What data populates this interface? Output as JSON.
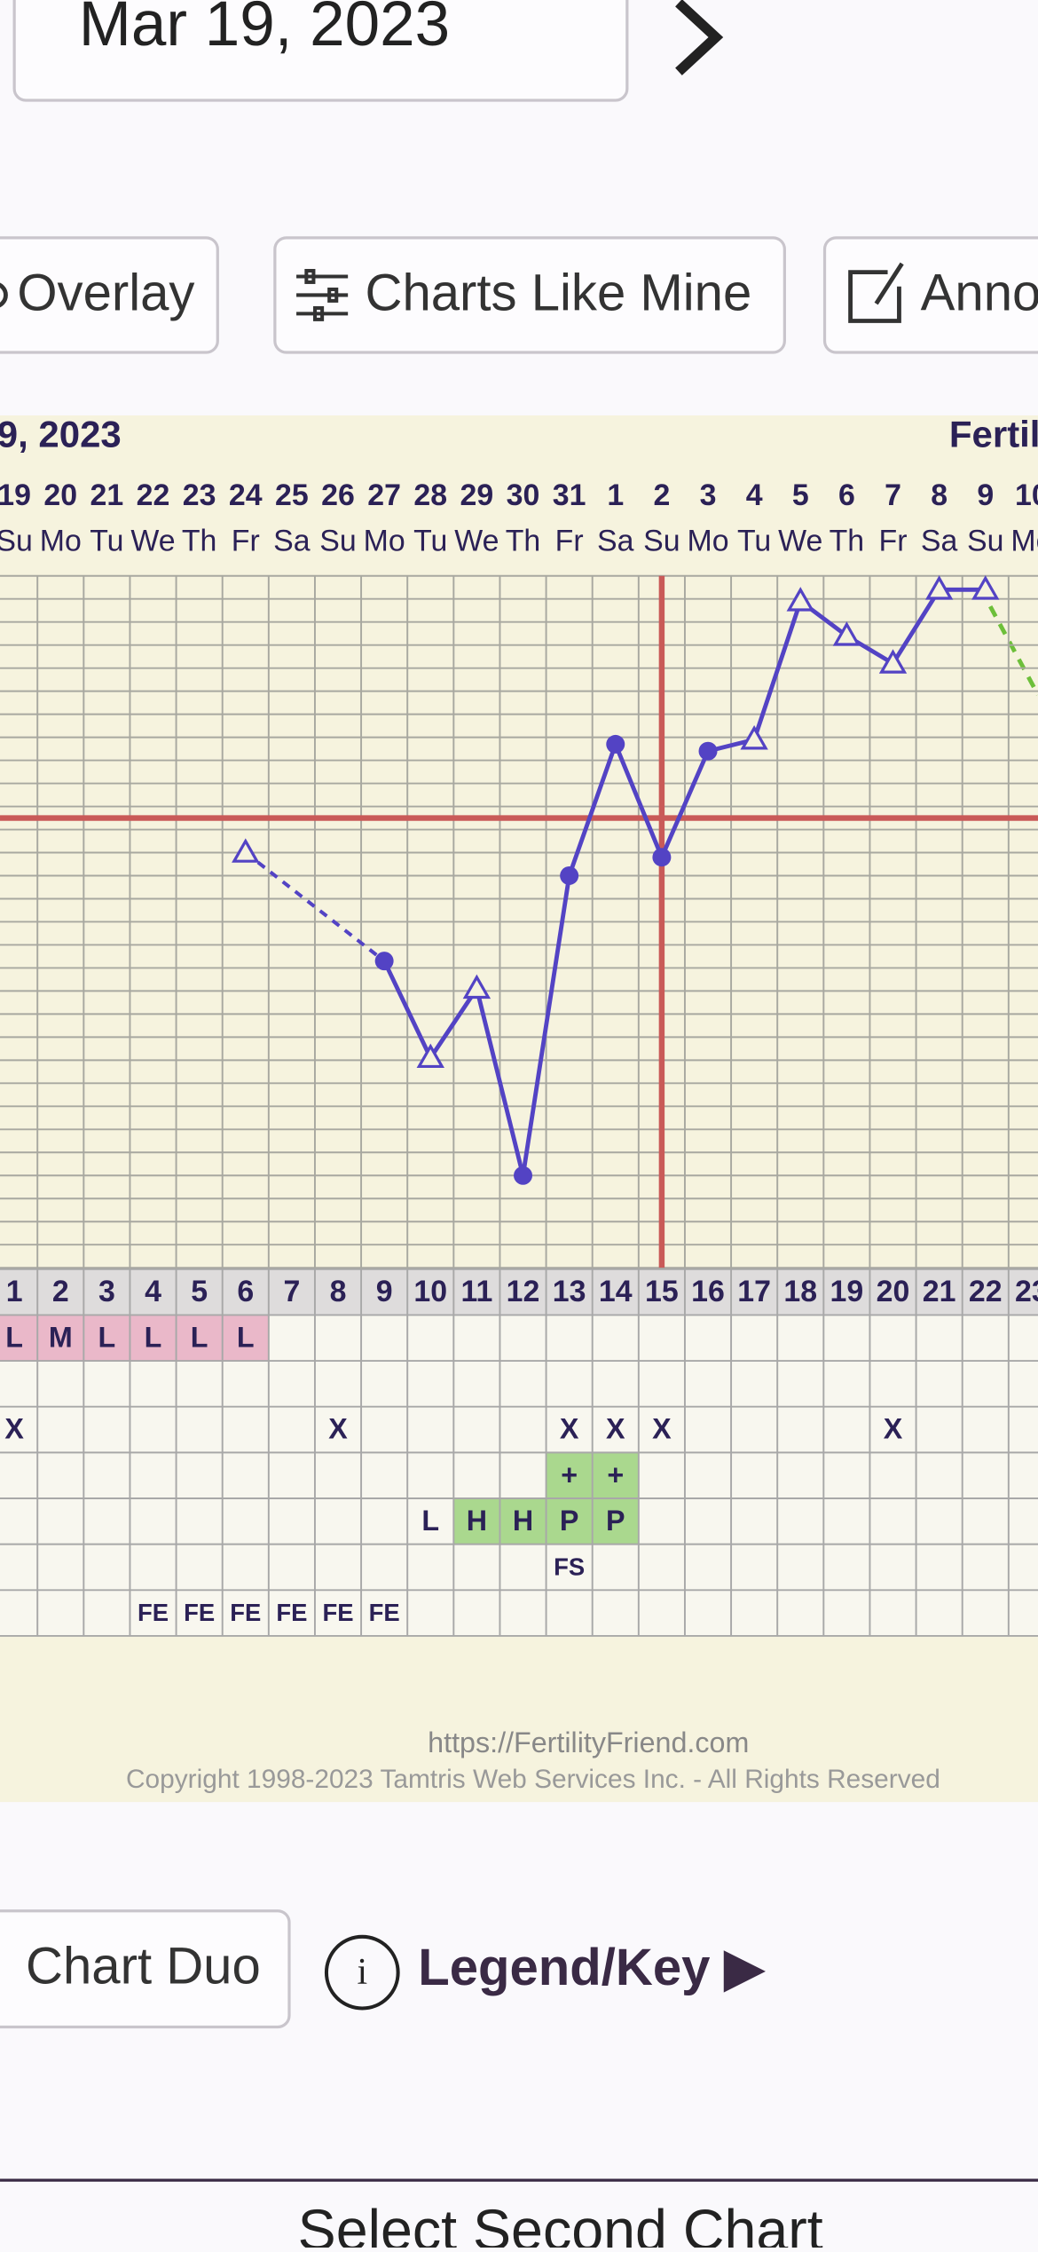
{
  "header": {
    "date": "Mar 19, 2023"
  },
  "toolbar": {
    "buttons": [
      "Overlay",
      "Charts Like Mine",
      "Anno"
    ]
  },
  "chart_data": {
    "type": "line",
    "title": "9, 2023",
    "subtitle": "Fertil",
    "categories": [
      "19",
      "20",
      "21",
      "22",
      "23",
      "24",
      "25",
      "26",
      "27",
      "28",
      "29",
      "30",
      "31",
      "1",
      "2",
      "3",
      "4",
      "5",
      "6",
      "7",
      "8",
      "9",
      "10"
    ],
    "weekdays": [
      "Su",
      "Mo",
      "Tu",
      "We",
      "Th",
      "Fr",
      "Sa",
      "Su",
      "Mo",
      "Tu",
      "We",
      "Th",
      "Fr",
      "Sa",
      "Su",
      "Mo",
      "Tu",
      "We",
      "Th",
      "Fr",
      "Sa",
      "Su",
      "Mo"
    ],
    "values": [
      null,
      null,
      null,
      null,
      null,
      18,
      null,
      null,
      13.3,
      9.1,
      12.1,
      4,
      17,
      22.7,
      17.8,
      22.4,
      22.9,
      28.9,
      27.4,
      26.2,
      29.4,
      29.4,
      null
    ],
    "markers": [
      null,
      null,
      null,
      null,
      null,
      "triangle",
      null,
      null,
      "circle",
      "triangle",
      "triangle",
      "circle",
      "circle",
      "circle",
      "circle",
      "circle",
      "triangle",
      "triangle",
      "triangle",
      "triangle",
      "triangle",
      "triangle",
      null
    ],
    "color": "#5343c4",
    "ylim": [
      0,
      30
    ],
    "grid": true,
    "coverline": 19.5,
    "coverline_color": "#c95a58",
    "ovulation_day": "2",
    "cycle_days": [
      1,
      2,
      3,
      4,
      5,
      6,
      7,
      8,
      9,
      10,
      11,
      12,
      13,
      14,
      15,
      16,
      17,
      18,
      19,
      20,
      21,
      22,
      23
    ],
    "rows": [
      {
        "cells": [
          "L",
          "M",
          "L",
          "L",
          "L",
          "L",
          null,
          null,
          null,
          null,
          null,
          null,
          null,
          null,
          null,
          null,
          null,
          null,
          null,
          null,
          null,
          null,
          null
        ],
        "fill": "#eab8c9"
      },
      {
        "cells": [
          "X",
          null,
          null,
          null,
          null,
          null,
          null,
          "X",
          null,
          null,
          null,
          null,
          "X",
          "X",
          "X",
          null,
          null,
          null,
          null,
          "X",
          null,
          null,
          null
        ]
      },
      {
        "cells": [
          null,
          null,
          null,
          null,
          null,
          null,
          null,
          null,
          null,
          null,
          null,
          null,
          "+",
          "+",
          null,
          null,
          null,
          null,
          null,
          null,
          null,
          null,
          null
        ],
        "fill": "#aad88e"
      },
      {
        "cells": [
          null,
          null,
          null,
          null,
          null,
          null,
          null,
          null,
          null,
          "L",
          "H",
          "H",
          "P",
          "P",
          null,
          null,
          null,
          null,
          null,
          null,
          null,
          null,
          null
        ],
        "fills": [
          null,
          null,
          null,
          null,
          null,
          null,
          null,
          null,
          null,
          null,
          "#aad88e",
          "#aad88e",
          "#aad88e",
          "#aad88e",
          null,
          null,
          null,
          null,
          null,
          null,
          null,
          null,
          null
        ]
      },
      {
        "cells": [
          null,
          null,
          null,
          null,
          null,
          null,
          null,
          null,
          null,
          null,
          null,
          null,
          "FS",
          null,
          null,
          null,
          null,
          null,
          null,
          null,
          null,
          null,
          null
        ]
      },
      {
        "cells": [
          null,
          null,
          null,
          "FE",
          "FE",
          "FE",
          "FE",
          "FE",
          "FE",
          null,
          null,
          null,
          null,
          null,
          null,
          null,
          null,
          null,
          null,
          null,
          null,
          null,
          null
        ]
      }
    ]
  },
  "footer": {
    "url": "https://FertilityFriend.com",
    "copyright": "Copyright 1998-2023 Tamtris Web Services Inc. - All Rights Reserved"
  },
  "bottom": {
    "duo": "Chart Duo",
    "info": "i",
    "legend": "Legend/Key ▶",
    "select": "Select Second Chart"
  }
}
